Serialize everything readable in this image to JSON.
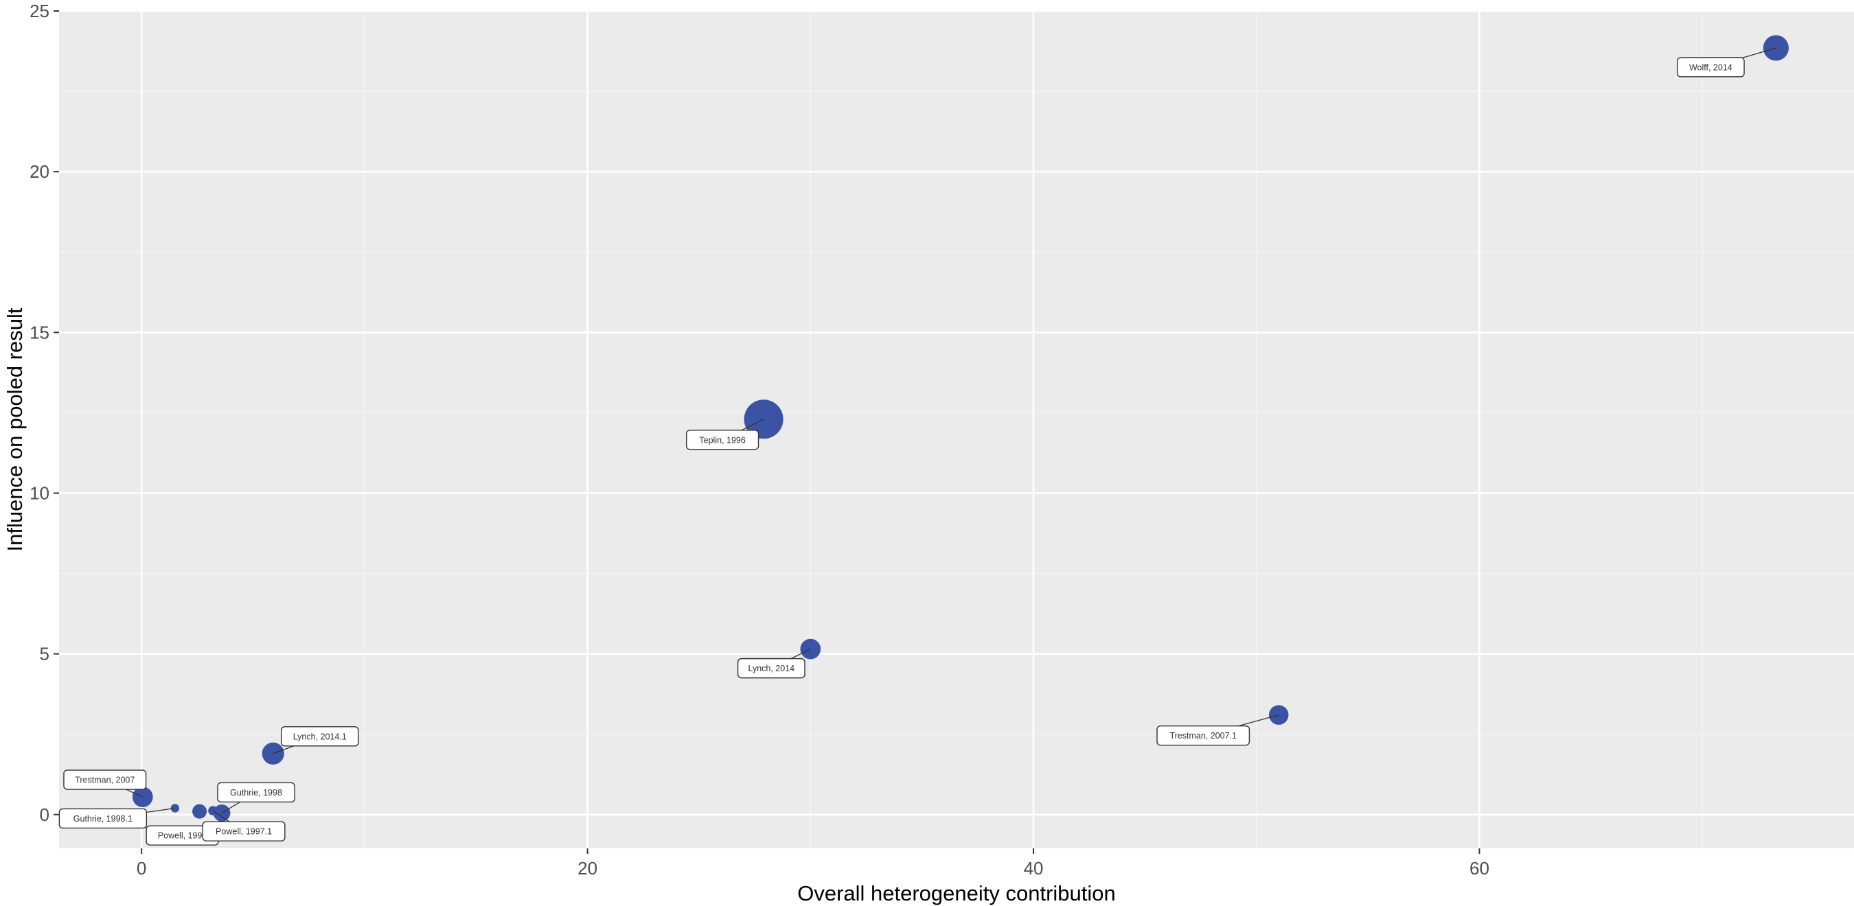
{
  "chart_data": {
    "type": "scatter",
    "title": "",
    "xlabel": "Overall heterogeneity contribution",
    "ylabel": "Influence on pooled result",
    "xlim": [
      -3.7,
      76.8
    ],
    "ylim": [
      -1.05,
      25.0
    ],
    "xticks": [
      0,
      20,
      40,
      60
    ],
    "yticks": [
      0,
      5,
      10,
      15,
      20,
      25
    ],
    "grid": true,
    "legend": "none",
    "colors": {
      "panel_bg": "#ebebeb",
      "grid_major": "#ffffff",
      "point": "#3a53a4",
      "label_border": "#333333",
      "label_bg": "#ffffff",
      "axis_text": "#4d4d4d",
      "axis_title": "#000000"
    },
    "points": [
      {
        "label": "Wolff, 2014",
        "x": 73.3,
        "y": 23.85,
        "size": 3.0
      },
      {
        "label": "Teplin, 1996",
        "x": 27.9,
        "y": 12.3,
        "size": 4.6
      },
      {
        "label": "Lynch, 2014",
        "x": 30.0,
        "y": 5.15,
        "size": 2.4
      },
      {
        "label": "Trestman, 2007.1",
        "x": 51.0,
        "y": 3.1,
        "size": 2.3
      },
      {
        "label": "Lynch, 2014.1",
        "x": 5.9,
        "y": 1.9,
        "size": 2.6
      },
      {
        "label": "Trestman, 2007",
        "x": 0.05,
        "y": 0.55,
        "size": 2.4
      },
      {
        "label": "Guthrie, 1998",
        "x": 3.6,
        "y": 0.05,
        "size": 2.0
      },
      {
        "label": "Guthrie, 1998.1",
        "x": 1.5,
        "y": 0.2,
        "size": 1.0
      },
      {
        "label": "Powell, 1997",
        "x": 2.6,
        "y": 0.1,
        "size": 1.7
      },
      {
        "label": "Powell, 1997.1",
        "x": 3.2,
        "y": 0.12,
        "size": 1.1
      }
    ]
  }
}
